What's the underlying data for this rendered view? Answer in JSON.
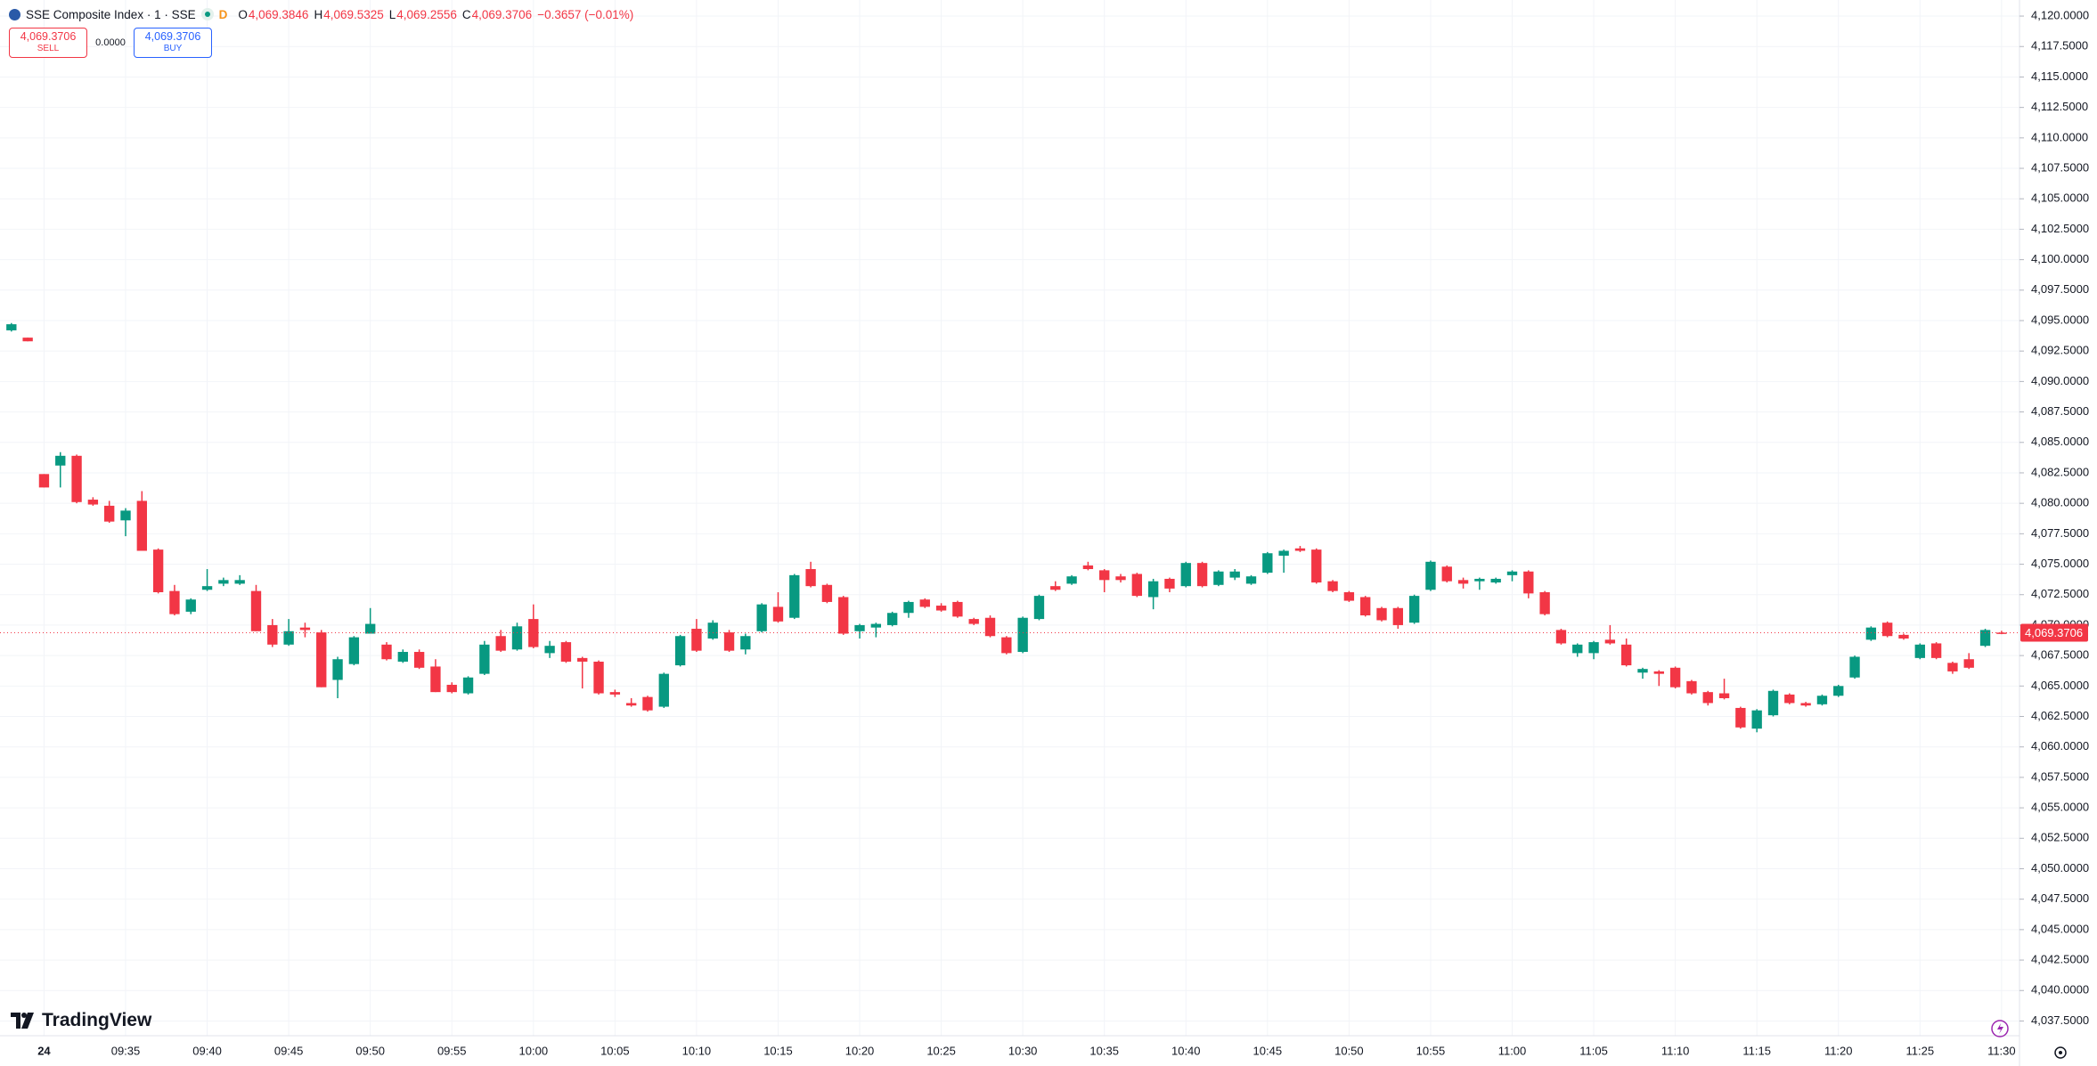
{
  "header": {
    "symbol": "SSE Composite Index · 1 · SSE",
    "interval_flag": "D",
    "open_label": "O",
    "open": "4,069.3846",
    "high_label": "H",
    "high": "4,069.5325",
    "low_label": "L",
    "low": "4,069.2556",
    "close_label": "C",
    "close": "4,069.3706",
    "change": "−0.3657 (−0.01%)"
  },
  "trade": {
    "sell_price": "4,069.3706",
    "sell_label": "SELL",
    "spread": "0.0000",
    "buy_price": "4,069.3706",
    "buy_label": "BUY"
  },
  "logo": "TradingView",
  "chart_data": {
    "type": "candlestick",
    "up_color": "#089981",
    "down_color": "#f23645",
    "grid": true,
    "xlim": [
      -2.7,
      121.1
    ],
    "ylim": [
      4036.29,
      4121.32
    ],
    "x": [
      -2,
      -1,
      0,
      1,
      2,
      3,
      4,
      5,
      6,
      7,
      8,
      9,
      10,
      11,
      12,
      13,
      14,
      15,
      16,
      17,
      18,
      19,
      20,
      21,
      22,
      23,
      24,
      25,
      26,
      27,
      28,
      29,
      30,
      31,
      32,
      33,
      34,
      35,
      36,
      37,
      38,
      39,
      40,
      41,
      42,
      43,
      44,
      45,
      46,
      47,
      48,
      49,
      50,
      51,
      52,
      53,
      54,
      55,
      56,
      57,
      58,
      59,
      60,
      61,
      62,
      63,
      64,
      65,
      66,
      67,
      68,
      69,
      70,
      71,
      72,
      73,
      74,
      75,
      76,
      77,
      78,
      79,
      80,
      81,
      82,
      83,
      84,
      85,
      86,
      87,
      88,
      89,
      90,
      91,
      92,
      93,
      94,
      95,
      96,
      97,
      98,
      99,
      100,
      101,
      102,
      103,
      104,
      105,
      106,
      107,
      108,
      109,
      110,
      111,
      112,
      113,
      114,
      115,
      116,
      117,
      118,
      119,
      120
    ],
    "open": [
      4094.2,
      4093.6,
      4082.4,
      4083.1,
      4083.9,
      4080.3,
      4079.8,
      4078.6,
      4080.2,
      4076.2,
      4072.8,
      4071.1,
      4072.9,
      4073.4,
      4073.4,
      4072.8,
      4070.0,
      4068.4,
      4069.8,
      4069.4,
      4065.5,
      4066.8,
      4069.3,
      4068.4,
      4067.0,
      4067.8,
      4066.6,
      4065.1,
      4064.4,
      4066.0,
      4069.1,
      4068.0,
      4070.5,
      4067.7,
      4068.6,
      4067.3,
      4067.0,
      4064.5,
      4063.6,
      4064.1,
      4063.3,
      4066.7,
      4069.7,
      4068.9,
      4069.4,
      4068.0,
      4069.5,
      4071.5,
      4070.6,
      4074.6,
      4073.3,
      4072.3,
      4069.5,
      4069.8,
      4070.0,
      4071.0,
      4072.1,
      4071.6,
      4071.9,
      4070.5,
      4070.6,
      4069.0,
      4067.8,
      4070.5,
      4073.2,
      4073.4,
      4074.9,
      4074.5,
      4074.0,
      4074.2,
      4072.3,
      4073.8,
      4073.2,
      4075.1,
      4073.3,
      4073.9,
      4073.4,
      4074.3,
      4075.7,
      4076.3,
      4076.2,
      4073.6,
      4072.7,
      4072.3,
      4071.4,
      4071.4,
      4070.2,
      4072.9,
      4074.8,
      4073.7,
      4073.6,
      4073.5,
      4074.1,
      4074.4,
      4072.7,
      4069.6,
      4067.7,
      4067.7,
      4068.8,
      4068.4,
      4066.1,
      4066.2,
      4066.5,
      4065.4,
      4064.5,
      4064.4,
      4063.2,
      4061.5,
      4062.6,
      4064.3,
      4063.6,
      4063.5,
      4064.2,
      4065.7,
      4068.8,
      4070.2,
      4069.2,
      4067.3,
      4068.5,
      4066.9,
      4067.2,
      4068.3,
      4069.3846
    ],
    "high": [
      4094.8,
      4093.6,
      4082.4,
      4084.2,
      4084.0,
      4080.5,
      4080.2,
      4079.6,
      4081.0,
      4076.3,
      4073.3,
      4072.2,
      4074.6,
      4073.9,
      4074.1,
      4073.3,
      4070.5,
      4070.5,
      4070.2,
      4069.6,
      4067.4,
      4069.1,
      4071.4,
      4068.6,
      4068.0,
      4068.0,
      4067.2,
      4065.3,
      4065.8,
      4068.7,
      4069.6,
      4070.2,
      4071.7,
      4068.7,
      4068.7,
      4067.4,
      4067.1,
      4064.7,
      4064.0,
      4064.2,
      4066.1,
      4069.2,
      4070.5,
      4070.4,
      4069.6,
      4069.3,
      4071.8,
      4072.7,
      4074.2,
      4075.2,
      4073.4,
      4072.4,
      4070.1,
      4070.2,
      4071.1,
      4072.0,
      4072.2,
      4071.8,
      4072.0,
      4070.6,
      4070.8,
      4069.1,
      4070.7,
      4072.5,
      4073.6,
      4074.1,
      4075.2,
      4074.6,
      4074.2,
      4074.3,
      4073.8,
      4073.9,
      4075.2,
      4075.2,
      4074.5,
      4074.6,
      4074.1,
      4076.0,
      4076.2,
      4076.5,
      4076.3,
      4073.7,
      4072.8,
      4072.4,
      4071.5,
      4071.5,
      4072.5,
      4075.3,
      4074.9,
      4073.9,
      4073.9,
      4073.9,
      4074.5,
      4074.5,
      4072.8,
      4069.7,
      4068.5,
      4068.7,
      4070.0,
      4068.9,
      4066.5,
      4066.3,
      4066.6,
      4065.5,
      4064.6,
      4065.6,
      4063.3,
      4063.1,
      4064.7,
      4064.4,
      4063.7,
      4064.3,
      4065.1,
      4067.5,
      4069.9,
      4070.3,
      4069.3,
      4068.5,
      4068.6,
      4067.0,
      4067.7,
      4069.7,
      4069.5325
    ],
    "low": [
      4094.1,
      4093.3,
      4081.3,
      4081.3,
      4080.0,
      4079.8,
      4078.4,
      4077.3,
      4076.1,
      4072.6,
      4070.8,
      4070.9,
      4072.8,
      4073.2,
      4073.3,
      4069.5,
      4068.2,
      4068.3,
      4069.0,
      4064.9,
      4064.0,
      4066.7,
      4069.3,
      4067.1,
      4066.9,
      4066.4,
      4064.5,
      4064.4,
      4064.3,
      4065.9,
      4067.8,
      4067.9,
      4068.1,
      4067.3,
      4066.9,
      4064.8,
      4064.3,
      4064.1,
      4063.3,
      4062.9,
      4063.2,
      4066.6,
      4067.8,
      4068.8,
      4067.8,
      4067.6,
      4069.4,
      4070.2,
      4070.5,
      4073.1,
      4071.8,
      4069.2,
      4068.9,
      4069.0,
      4069.9,
      4070.6,
      4071.4,
      4071.1,
      4070.6,
      4070.0,
      4069.0,
      4067.6,
      4067.7,
      4070.4,
      4072.8,
      4073.3,
      4074.5,
      4072.7,
      4073.5,
      4072.3,
      4071.3,
      4072.7,
      4073.1,
      4073.1,
      4073.2,
      4073.7,
      4073.3,
      4074.2,
      4074.3,
      4076.0,
      4073.4,
      4072.7,
      4071.9,
      4070.7,
      4070.3,
      4069.7,
      4070.1,
      4072.8,
      4073.5,
      4073.0,
      4072.9,
      4073.4,
      4073.6,
      4072.2,
      4070.8,
      4068.4,
      4067.4,
      4067.2,
      4068.4,
      4066.6,
      4065.6,
      4065.0,
      4064.8,
      4064.3,
      4063.4,
      4063.9,
      4061.5,
      4061.2,
      4062.5,
      4063.5,
      4063.3,
      4063.4,
      4064.1,
      4065.6,
      4068.7,
      4069.0,
      4068.8,
      4067.2,
      4067.2,
      4066.0,
      4066.4,
      4068.2,
      4069.2556
    ],
    "close": [
      4094.7,
      4093.3,
      4081.3,
      4083.9,
      4080.1,
      4079.9,
      4078.5,
      4079.4,
      4076.1,
      4072.7,
      4070.9,
      4072.1,
      4073.2,
      4073.7,
      4073.7,
      4069.5,
      4068.4,
      4069.5,
      4069.6,
      4064.9,
      4067.2,
      4069.0,
      4070.1,
      4067.2,
      4067.8,
      4066.5,
      4064.5,
      4064.5,
      4065.7,
      4068.4,
      4067.9,
      4069.9,
      4068.2,
      4068.3,
      4067.0,
      4067.0,
      4064.4,
      4064.3,
      4063.4,
      4063.0,
      4066.0,
      4069.1,
      4067.9,
      4070.2,
      4067.9,
      4069.1,
      4071.7,
      4070.3,
      4074.1,
      4073.2,
      4071.9,
      4069.3,
      4070.0,
      4070.1,
      4071.0,
      4071.9,
      4071.5,
      4071.2,
      4070.7,
      4070.1,
      4069.1,
      4067.7,
      4070.6,
      4072.4,
      4072.9,
      4074.0,
      4074.6,
      4073.7,
      4073.7,
      4072.4,
      4073.6,
      4073.0,
      4075.1,
      4073.2,
      4074.4,
      4074.4,
      4074.0,
      4075.9,
      4076.1,
      4076.1,
      4073.5,
      4072.8,
      4072.0,
      4070.8,
      4070.4,
      4070.0,
      4072.4,
      4075.2,
      4073.6,
      4073.4,
      4073.8,
      4073.8,
      4074.4,
      4072.6,
      4070.9,
      4068.5,
      4068.4,
      4068.6,
      4068.5,
      4066.7,
      4066.4,
      4066.0,
      4064.9,
      4064.4,
      4063.6,
      4064.0,
      4061.6,
      4063.0,
      4064.6,
      4063.6,
      4063.4,
      4064.2,
      4065.0,
      4067.4,
      4069.8,
      4069.1,
      4068.9,
      4068.4,
      4067.3,
      4066.2,
      4066.5,
      4069.6,
      4069.3706
    ],
    "last_price": {
      "value": 4069.3706,
      "label": "4,069.3706"
    },
    "xticks": [
      {
        "value": 0,
        "label": "24"
      },
      {
        "value": 5,
        "label": "09:35"
      },
      {
        "value": 10,
        "label": "09:40"
      },
      {
        "value": 15,
        "label": "09:45"
      },
      {
        "value": 20,
        "label": "09:50"
      },
      {
        "value": 25,
        "label": "09:55"
      },
      {
        "value": 30,
        "label": "10:00"
      },
      {
        "value": 35,
        "label": "10:05"
      },
      {
        "value": 40,
        "label": "10:10"
      },
      {
        "value": 45,
        "label": "10:15"
      },
      {
        "value": 50,
        "label": "10:20"
      },
      {
        "value": 55,
        "label": "10:25"
      },
      {
        "value": 60,
        "label": "10:30"
      },
      {
        "value": 65,
        "label": "10:35"
      },
      {
        "value": 70,
        "label": "10:40"
      },
      {
        "value": 75,
        "label": "10:45"
      },
      {
        "value": 80,
        "label": "10:50"
      },
      {
        "value": 85,
        "label": "10:55"
      },
      {
        "value": 90,
        "label": "11:00"
      },
      {
        "value": 95,
        "label": "11:05"
      },
      {
        "value": 100,
        "label": "11:10"
      },
      {
        "value": 105,
        "label": "11:15"
      },
      {
        "value": 110,
        "label": "11:20"
      },
      {
        "value": 115,
        "label": "11:25"
      },
      {
        "value": 120,
        "label": "11:30"
      }
    ],
    "yticks": [
      {
        "value": 4037.5,
        "label": "4,037.5000"
      },
      {
        "value": 4040,
        "label": "4,040.0000"
      },
      {
        "value": 4042.5,
        "label": "4,042.5000"
      },
      {
        "value": 4045,
        "label": "4,045.0000"
      },
      {
        "value": 4047.5,
        "label": "4,047.5000"
      },
      {
        "value": 4050,
        "label": "4,050.0000"
      },
      {
        "value": 4052.5,
        "label": "4,052.5000"
      },
      {
        "value": 4055,
        "label": "4,055.0000"
      },
      {
        "value": 4057.5,
        "label": "4,057.5000"
      },
      {
        "value": 4060,
        "label": "4,060.0000"
      },
      {
        "value": 4062.5,
        "label": "4,062.5000"
      },
      {
        "value": 4065,
        "label": "4,065.0000"
      },
      {
        "value": 4067.5,
        "label": "4,067.5000"
      },
      {
        "value": 4070,
        "label": "4,070.0000"
      },
      {
        "value": 4072.5,
        "label": "4,072.5000"
      },
      {
        "value": 4075,
        "label": "4,075.0000"
      },
      {
        "value": 4077.5,
        "label": "4,077.5000"
      },
      {
        "value": 4080,
        "label": "4,080.0000"
      },
      {
        "value": 4082.5,
        "label": "4,082.5000"
      },
      {
        "value": 4085,
        "label": "4,085.0000"
      },
      {
        "value": 4087.5,
        "label": "4,087.5000"
      },
      {
        "value": 4090,
        "label": "4,090.0000"
      },
      {
        "value": 4092.5,
        "label": "4,092.5000"
      },
      {
        "value": 4095,
        "label": "4,095.0000"
      },
      {
        "value": 4097.5,
        "label": "4,097.5000"
      },
      {
        "value": 4100,
        "label": "4,100.0000"
      },
      {
        "value": 4102.5,
        "label": "4,102.5000"
      },
      {
        "value": 4105,
        "label": "4,105.0000"
      },
      {
        "value": 4107.5,
        "label": "4,107.5000"
      },
      {
        "value": 4110,
        "label": "4,110.0000"
      },
      {
        "value": 4112.5,
        "label": "4,112.5000"
      },
      {
        "value": 4115,
        "label": "4,115.0000"
      },
      {
        "value": 4117.5,
        "label": "4,117.5000"
      },
      {
        "value": 4120,
        "label": "4,120.0000"
      }
    ]
  }
}
